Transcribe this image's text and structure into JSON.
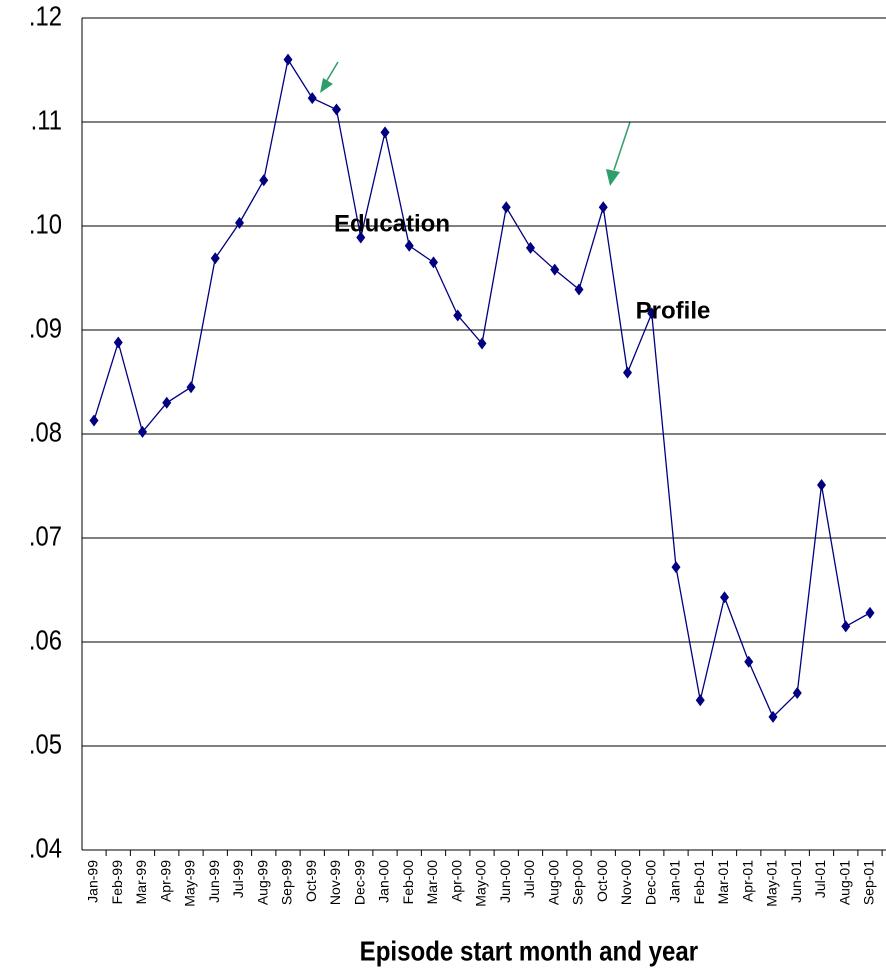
{
  "chart_data": {
    "type": "line",
    "x_label": "Episode start month and year",
    "categories": [
      "Jan-99",
      "Feb-99",
      "Mar-99",
      "Apr-99",
      "May-99",
      "Jun-99",
      "Jul-99",
      "Aug-99",
      "Sep-99",
      "Oct-99",
      "Nov-99",
      "Dec-99",
      "Jan-00",
      "Feb-00",
      "Mar-00",
      "Apr-00",
      "May-00",
      "Jun-00",
      "Jul-00",
      "Aug-00",
      "Sep-00",
      "Oct-00",
      "Nov-00",
      "Dec-00",
      "Jan-01",
      "Feb-01",
      "Mar-01",
      "Apr-01",
      "May-01",
      "Jun-01",
      "Jul-01",
      "Aug-01",
      "Sep-01"
    ],
    "values": [
      0.0813,
      0.0888,
      0.0802,
      0.083,
      0.0845,
      0.0969,
      0.1003,
      0.1044,
      0.116,
      0.1123,
      0.1112,
      0.0989,
      0.109,
      0.0981,
      0.0965,
      0.0914,
      0.0887,
      0.1018,
      0.0979,
      0.0958,
      0.0939,
      0.1018,
      0.0859,
      0.0916,
      0.0672,
      0.0544,
      0.0643,
      0.0581,
      0.0528,
      0.0551,
      0.0751,
      0.0615,
      0.0628
    ],
    "color": "#000080",
    "ylim": [
      0.04,
      0.12
    ],
    "yticks": [
      {
        "value": 0.04,
        "label": ".04"
      },
      {
        "value": 0.05,
        "label": ".05"
      },
      {
        "value": 0.06,
        "label": ".06"
      },
      {
        "value": 0.07,
        "label": ".07"
      },
      {
        "value": 0.08,
        "label": ".08"
      },
      {
        "value": 0.09,
        "label": ".09"
      },
      {
        "value": 0.1,
        "label": ".10"
      },
      {
        "value": 0.11,
        "label": ".11"
      },
      {
        "value": 0.12,
        "label": ".12"
      }
    ],
    "grid": true,
    "annotations": [
      "Education",
      "Profile"
    ]
  }
}
